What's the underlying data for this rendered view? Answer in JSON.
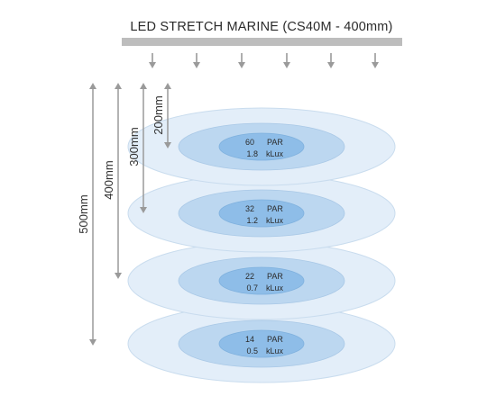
{
  "title": "LED STRETCH MARINE (CS40M - 400mm)",
  "colors": {
    "light_bar": "#bdbdbd",
    "arrow": "#9a9a9a",
    "outer_ring": "#e3eef9",
    "outer_ring_stroke": "#c9dcee",
    "middle_ring": "#bcd7f0",
    "middle_ring_stroke": "#a9c8e6",
    "inner_ring": "#8ebde8",
    "inner_ring_stroke": "#7fb1de"
  },
  "depths": [
    {
      "label": "200mm"
    },
    {
      "label": "300mm"
    },
    {
      "label": "400mm"
    },
    {
      "label": "500mm"
    }
  ],
  "readings": [
    {
      "par_value": "60",
      "par_unit": "PAR",
      "lux_value": "1.8",
      "lux_unit": "kLux"
    },
    {
      "par_value": "32",
      "par_unit": "PAR",
      "lux_value": "1.2",
      "lux_unit": "kLux"
    },
    {
      "par_value": "22",
      "par_unit": "PAR",
      "lux_value": "0.7",
      "lux_unit": "kLux"
    },
    {
      "par_value": "14",
      "par_unit": "PAR",
      "lux_value": "0.5",
      "lux_unit": "kLux"
    }
  ]
}
